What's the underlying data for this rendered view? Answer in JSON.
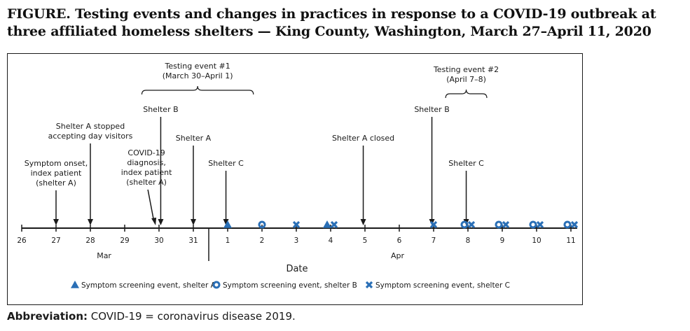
{
  "title": "FIGURE. Testing events and changes in practices in response to a COVID-19 outbreak at three affiliated homeless shelters — King County, Washington, March 27–April 11, 2020",
  "footnote": {
    "label": "Abbreviation:",
    "text": "COVID-19 = coronavirus disease 2019."
  },
  "chart_data": {
    "type": "timeline",
    "xlabel": "Date",
    "ticks": [
      {
        "label": "26",
        "month": "Mar"
      },
      {
        "label": "27",
        "month": "Mar"
      },
      {
        "label": "28",
        "month": "Mar"
      },
      {
        "label": "29",
        "month": "Mar"
      },
      {
        "label": "30",
        "month": "Mar"
      },
      {
        "label": "31",
        "month": "Mar"
      },
      {
        "label": "1",
        "month": "Apr"
      },
      {
        "label": "2",
        "month": "Apr"
      },
      {
        "label": "3",
        "month": "Apr"
      },
      {
        "label": "4",
        "month": "Apr"
      },
      {
        "label": "5",
        "month": "Apr"
      },
      {
        "label": "6",
        "month": "Apr"
      },
      {
        "label": "7",
        "month": "Apr"
      },
      {
        "label": "8",
        "month": "Apr"
      },
      {
        "label": "9",
        "month": "Apr"
      },
      {
        "label": "10",
        "month": "Apr"
      },
      {
        "label": "11",
        "month": "Apr"
      }
    ],
    "months": [
      {
        "label": "Mar",
        "at": 28.4
      },
      {
        "label": "Apr",
        "at": 5.9
      }
    ],
    "testing_events": [
      {
        "name": "Testing event #1",
        "dates": "(March 30–April 1)",
        "from_index": 3.5,
        "to_index": 6.75
      },
      {
        "name": "Testing event #2",
        "dates": "(April 7–8)",
        "from_index": 12.35,
        "to_index": 13.55
      }
    ],
    "annotations": [
      {
        "lines": [
          "Symptom onset,",
          "index patient",
          "(shelter A)"
        ],
        "index": 1,
        "level": "low"
      },
      {
        "lines": [
          "Shelter A stopped",
          "accepting day visitors"
        ],
        "index": 2,
        "level": "high"
      },
      {
        "lines": [
          "COVID-19",
          "diagnosis,",
          "index patient",
          "(shelter A)"
        ],
        "index": 3.9,
        "level": "low"
      },
      {
        "lines": [
          "Shelter B"
        ],
        "index": 4.05,
        "level": "top"
      },
      {
        "lines": [
          "Shelter A"
        ],
        "index": 5,
        "level": "mid"
      },
      {
        "lines": [
          "Shelter C"
        ],
        "index": 5.95,
        "level": "lower"
      },
      {
        "lines": [
          "Shelter A closed"
        ],
        "index": 9.95,
        "level": "mid"
      },
      {
        "lines": [
          "Shelter B"
        ],
        "index": 11.95,
        "level": "top"
      },
      {
        "lines": [
          "Shelter C"
        ],
        "index": 12.95,
        "level": "lower"
      }
    ],
    "screening_events": [
      {
        "date": "Apr 1",
        "index": 6,
        "shelters": [
          "A"
        ]
      },
      {
        "date": "Apr 2",
        "index": 7,
        "shelters": [
          "B"
        ]
      },
      {
        "date": "Apr 3",
        "index": 8,
        "shelters": [
          "C"
        ]
      },
      {
        "date": "Apr 4",
        "index": 9,
        "shelters": [
          "A",
          "C"
        ]
      },
      {
        "date": "Apr 7",
        "index": 12,
        "shelters": [
          "C"
        ]
      },
      {
        "date": "Apr 8",
        "index": 13,
        "shelters": [
          "B",
          "C"
        ]
      },
      {
        "date": "Apr 9",
        "index": 14,
        "shelters": [
          "B",
          "C"
        ]
      },
      {
        "date": "Apr 10",
        "index": 15,
        "shelters": [
          "B",
          "C"
        ]
      },
      {
        "date": "Apr 11",
        "index": 16,
        "shelters": [
          "B",
          "C"
        ]
      }
    ],
    "legend": [
      {
        "symbol": "triangle",
        "label": "Symptom screening event, shelter A",
        "key": "A"
      },
      {
        "symbol": "circle",
        "label": "Symptom screening event, shelter B",
        "key": "B"
      },
      {
        "symbol": "x",
        "label": "Symptom screening event, shelter C",
        "key": "C"
      }
    ],
    "marker_color": "#2a6fb6"
  }
}
